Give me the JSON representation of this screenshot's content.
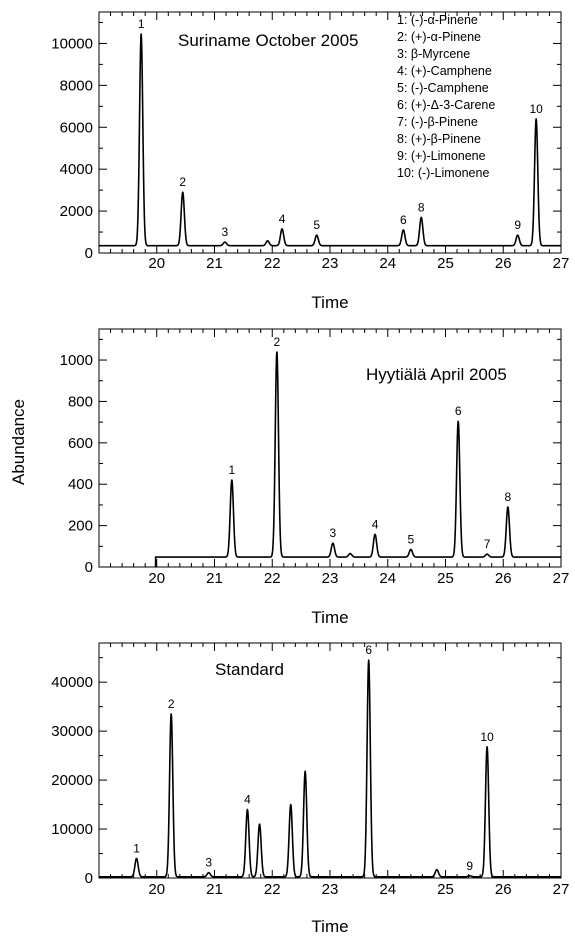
{
  "figure": {
    "ylabel": "Abundance"
  },
  "chart_data": [
    {
      "type": "line",
      "title": "Suriname October 2005",
      "xlabel": "Time",
      "ylabel": "",
      "xlim": [
        19,
        27
      ],
      "ylim": [
        0,
        11500
      ],
      "x_ticks": [
        20,
        21,
        22,
        23,
        24,
        25,
        26,
        27
      ],
      "y_ticks": [
        0,
        2000,
        4000,
        6000,
        8000,
        10000
      ],
      "baseline": 350,
      "peaks": [
        {
          "label": "1",
          "time": 19.73,
          "height": 10450
        },
        {
          "label": "2",
          "time": 20.45,
          "height": 2900
        },
        {
          "label": "3",
          "time": 21.18,
          "height": 520
        },
        {
          "label": "",
          "time": 21.92,
          "height": 580
        },
        {
          "label": "4",
          "time": 22.17,
          "height": 1150
        },
        {
          "label": "5",
          "time": 22.77,
          "height": 850
        },
        {
          "label": "6",
          "time": 24.27,
          "height": 1100
        },
        {
          "label": "8",
          "time": 24.58,
          "height": 1700
        },
        {
          "label": "9",
          "time": 26.25,
          "height": 850
        },
        {
          "label": "10",
          "time": 26.57,
          "height": 6400
        }
      ],
      "legend": [
        "1: (-)-α-Pinene",
        "2: (+)-α-Pinene",
        "3: β-Myrcene",
        "4: (+)-Camphene",
        "5: (-)-Camphene",
        "6: (+)-Δ-3-Carene",
        "7: (-)-β-Pinene",
        "8: (+)-β-Pinene",
        "9: (+)-Limonene",
        "10: (-)-Limonene"
      ]
    },
    {
      "type": "line",
      "title": "Hyytiälä April 2005",
      "xlabel": "Time",
      "ylabel": "",
      "xlim": [
        19,
        27
      ],
      "ylim": [
        0,
        1150
      ],
      "x_ticks": [
        20,
        21,
        22,
        23,
        24,
        25,
        26,
        27
      ],
      "y_ticks": [
        0,
        200,
        400,
        600,
        800,
        1000
      ],
      "baseline": 48,
      "start_time": 19.98,
      "peaks": [
        {
          "label": "1",
          "time": 21.3,
          "height": 420
        },
        {
          "label": "2",
          "time": 22.08,
          "height": 1040
        },
        {
          "label": "3",
          "time": 23.05,
          "height": 115
        },
        {
          "label": "",
          "time": 23.35,
          "height": 65
        },
        {
          "label": "4",
          "time": 23.78,
          "height": 158
        },
        {
          "label": "5",
          "time": 24.4,
          "height": 85
        },
        {
          "label": "6",
          "time": 25.22,
          "height": 705
        },
        {
          "label": "7",
          "time": 25.72,
          "height": 62
        },
        {
          "label": "8",
          "time": 26.08,
          "height": 290
        }
      ]
    },
    {
      "type": "line",
      "title": "Standard",
      "xlabel": "Time",
      "ylabel": "",
      "xlim": [
        19,
        27
      ],
      "ylim": [
        0,
        48000
      ],
      "x_ticks": [
        20,
        21,
        22,
        23,
        24,
        25,
        26,
        27
      ],
      "y_ticks": [
        0,
        10000,
        20000,
        30000,
        40000
      ],
      "baseline": 250,
      "peaks": [
        {
          "label": "1",
          "time": 19.65,
          "height": 4000
        },
        {
          "label": "2",
          "time": 20.25,
          "height": 33500
        },
        {
          "label": "3",
          "time": 20.9,
          "height": 1100
        },
        {
          "label": "4",
          "time": 21.57,
          "height": 14000
        },
        {
          "label": "",
          "time": 21.78,
          "height": 11000
        },
        {
          "label": "",
          "time": 22.32,
          "height": 15000
        },
        {
          "label": "",
          "time": 22.57,
          "height": 21800
        },
        {
          "label": "6",
          "time": 23.67,
          "height": 44500
        },
        {
          "label": "",
          "time": 24.85,
          "height": 1700
        },
        {
          "label": "9",
          "time": 25.42,
          "height": 450
        },
        {
          "label": "10",
          "time": 25.72,
          "height": 26800
        }
      ]
    }
  ]
}
